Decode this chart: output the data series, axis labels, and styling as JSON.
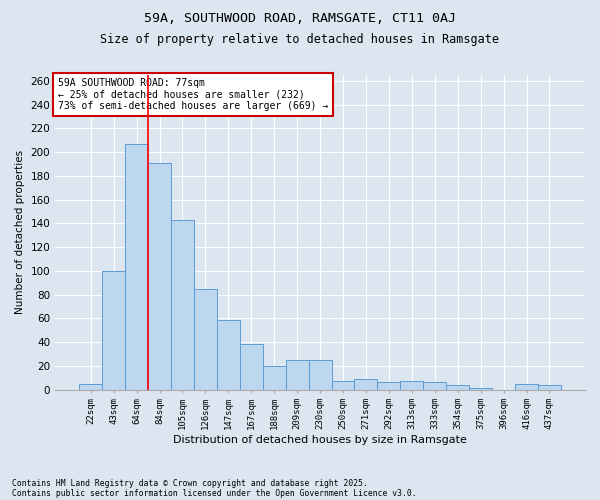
{
  "title1": "59A, SOUTHWOOD ROAD, RAMSGATE, CT11 0AJ",
  "title2": "Size of property relative to detached houses in Ramsgate",
  "xlabel": "Distribution of detached houses by size in Ramsgate",
  "ylabel": "Number of detached properties",
  "categories": [
    "22sqm",
    "43sqm",
    "64sqm",
    "84sqm",
    "105sqm",
    "126sqm",
    "147sqm",
    "167sqm",
    "188sqm",
    "209sqm",
    "230sqm",
    "250sqm",
    "271sqm",
    "292sqm",
    "313sqm",
    "333sqm",
    "354sqm",
    "375sqm",
    "396sqm",
    "416sqm",
    "437sqm"
  ],
  "values": [
    5,
    100,
    207,
    191,
    143,
    85,
    59,
    38,
    20,
    25,
    25,
    7,
    9,
    6,
    7,
    6,
    4,
    1,
    0,
    5,
    4
  ],
  "bar_color": "#bdd7ee",
  "bar_edge_color": "#5b9bd5",
  "bg_color": "#dce6f1",
  "grid_color": "#ffffff",
  "vline_x": 2.5,
  "vline_color": "#ff0000",
  "annotation_text": "59A SOUTHWOOD ROAD: 77sqm\n← 25% of detached houses are smaller (232)\n73% of semi-detached houses are larger (669) →",
  "annotation_box_color": "#ffffff",
  "annotation_box_edge": "#cc0000",
  "footer1": "Contains HM Land Registry data © Crown copyright and database right 2025.",
  "footer2": "Contains public sector information licensed under the Open Government Licence v3.0.",
  "ylim": [
    0,
    265
  ],
  "yticks": [
    0,
    20,
    40,
    60,
    80,
    100,
    120,
    140,
    160,
    180,
    200,
    220,
    240,
    260
  ]
}
